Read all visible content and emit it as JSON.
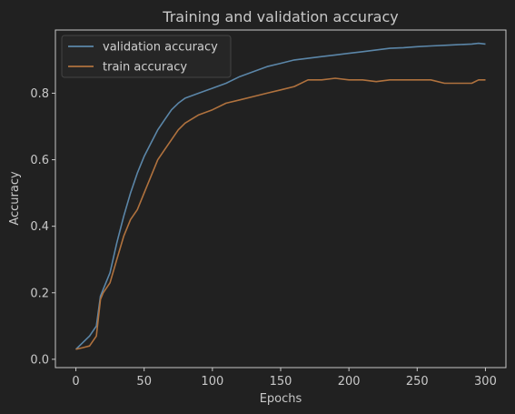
{
  "chart_data": {
    "type": "line",
    "title": "Training and validation accuracy",
    "xlabel": "Epochs",
    "ylabel": "Accuracy",
    "xlim": [
      -15,
      315
    ],
    "ylim": [
      -0.025,
      0.99
    ],
    "xticks": [
      0,
      50,
      100,
      150,
      200,
      250,
      300
    ],
    "yticks": [
      0.0,
      0.2,
      0.4,
      0.6,
      0.8
    ],
    "legend_position": "upper-left",
    "grid": false,
    "series": [
      {
        "name": "validation accuracy",
        "color": "#5b86a8",
        "x": [
          0,
          5,
          10,
          15,
          18,
          20,
          25,
          30,
          35,
          40,
          45,
          50,
          55,
          60,
          65,
          70,
          75,
          80,
          90,
          100,
          110,
          120,
          130,
          140,
          150,
          160,
          170,
          180,
          190,
          200,
          210,
          220,
          230,
          240,
          250,
          260,
          270,
          280,
          290,
          295,
          300
        ],
        "y": [
          0.03,
          0.05,
          0.07,
          0.1,
          0.19,
          0.21,
          0.26,
          0.35,
          0.43,
          0.5,
          0.56,
          0.61,
          0.65,
          0.69,
          0.72,
          0.75,
          0.77,
          0.785,
          0.8,
          0.815,
          0.83,
          0.85,
          0.865,
          0.88,
          0.89,
          0.9,
          0.905,
          0.91,
          0.915,
          0.92,
          0.925,
          0.93,
          0.935,
          0.937,
          0.94,
          0.942,
          0.944,
          0.946,
          0.948,
          0.95,
          0.948
        ]
      },
      {
        "name": "train accuracy",
        "color": "#b0723e",
        "x": [
          0,
          5,
          10,
          15,
          18,
          20,
          25,
          30,
          35,
          40,
          45,
          50,
          55,
          60,
          65,
          70,
          75,
          80,
          90,
          100,
          110,
          120,
          130,
          140,
          150,
          160,
          170,
          180,
          190,
          200,
          210,
          220,
          230,
          240,
          250,
          260,
          270,
          280,
          290,
          295,
          300
        ],
        "y": [
          0.03,
          0.035,
          0.04,
          0.07,
          0.18,
          0.2,
          0.23,
          0.3,
          0.37,
          0.42,
          0.45,
          0.5,
          0.55,
          0.6,
          0.63,
          0.66,
          0.69,
          0.71,
          0.735,
          0.75,
          0.77,
          0.78,
          0.79,
          0.8,
          0.81,
          0.82,
          0.84,
          0.84,
          0.845,
          0.84,
          0.84,
          0.835,
          0.84,
          0.84,
          0.84,
          0.84,
          0.83,
          0.83,
          0.83,
          0.84,
          0.84
        ]
      }
    ]
  }
}
